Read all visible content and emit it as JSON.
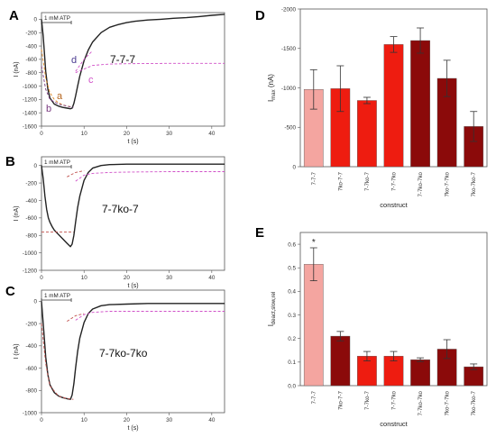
{
  "chart_data": [
    {
      "panel": "A",
      "type": "line",
      "xlabel": "t (s)",
      "ylabel": "I (nA)",
      "xlim": [
        0,
        43
      ],
      "ylim": [
        -1600,
        100
      ],
      "xticks": [
        0,
        10,
        20,
        30,
        40
      ],
      "yticks": [
        0,
        -200,
        -400,
        -600,
        -800,
        -1000,
        -1200,
        -1400,
        -1600
      ],
      "stimulus_label": "1 mM ATP",
      "stimulus_range": [
        0,
        7
      ],
      "annotation": "7-7-7",
      "curve_labels": [
        "a",
        "b",
        "c",
        "d"
      ],
      "series": [
        {
          "color": "#222222",
          "x": [
            0,
            0.4,
            1,
            1.5,
            2,
            3,
            4,
            5,
            6,
            6.8,
            7.2,
            7.6,
            8,
            8.5,
            9,
            10,
            11,
            12,
            14,
            16,
            18,
            20,
            22,
            25,
            28,
            31,
            34,
            37,
            40,
            43
          ],
          "y": [
            0,
            -250,
            -780,
            -1050,
            -1180,
            -1270,
            -1300,
            -1320,
            -1330,
            -1340,
            -1330,
            -1260,
            -1150,
            -1000,
            -850,
            -620,
            -460,
            -340,
            -200,
            -120,
            -80,
            -50,
            -30,
            -10,
            0,
            15,
            25,
            40,
            60,
            75
          ]
        },
        {
          "color": "#e08a28",
          "dashed": true,
          "x": [
            0,
            1,
            2,
            3,
            4,
            5,
            6,
            7
          ],
          "y": [
            -450,
            -880,
            -1100,
            -1200,
            -1250,
            -1280,
            -1300,
            -1310
          ]
        },
        {
          "color": "#7a3a80",
          "dashed": true,
          "x": [
            0,
            1,
            2,
            4,
            6,
            7.5
          ],
          "y": [
            -700,
            -1050,
            -1200,
            -1270,
            -1300,
            -1320
          ]
        },
        {
          "color": "#d050c8",
          "dashed": true,
          "x": [
            8,
            12,
            16,
            20,
            30,
            43
          ],
          "y": [
            -800,
            -690,
            -670,
            -665,
            -660,
            -660
          ]
        },
        {
          "color": "#d050c8",
          "dashed": true,
          "x": [
            8,
            10,
            12
          ],
          "y": [
            -780,
            -600,
            -470
          ]
        }
      ]
    },
    {
      "panel": "B",
      "type": "line",
      "xlabel": "t (s)",
      "ylabel": "I (nA)",
      "xlim": [
        0,
        43
      ],
      "ylim": [
        -1200,
        100
      ],
      "xticks": [
        0,
        10,
        20,
        30,
        40
      ],
      "yticks": [
        0,
        -200,
        -400,
        -600,
        -800,
        -1000,
        -1200
      ],
      "stimulus_label": "1 mM ATP",
      "stimulus_range": [
        0,
        7
      ],
      "annotation": "7-7ko-7",
      "series": [
        {
          "color": "#222222",
          "x": [
            0,
            0.4,
            0.8,
            1.2,
            1.6,
            2,
            2.5,
            3,
            4,
            5,
            6,
            6.8,
            7.2,
            7.6,
            8,
            8.5,
            9,
            10,
            11,
            12,
            14,
            16,
            20,
            25,
            30,
            35,
            40,
            43
          ],
          "y": [
            0,
            -150,
            -350,
            -500,
            -600,
            -650,
            -700,
            -740,
            -790,
            -840,
            -890,
            -930,
            -900,
            -800,
            -650,
            -480,
            -350,
            -170,
            -80,
            -30,
            0,
            10,
            15,
            15,
            15,
            15,
            15,
            15
          ]
        },
        {
          "color": "#c0504d",
          "dashed": true,
          "x": [
            0,
            2,
            4,
            6,
            7.5
          ],
          "y": [
            -760,
            -760,
            -760,
            -760,
            -760
          ]
        },
        {
          "color": "#d050c8",
          "dashed": true,
          "x": [
            8,
            10,
            12,
            16,
            20,
            30,
            43
          ],
          "y": [
            -180,
            -110,
            -90,
            -80,
            -75,
            -70,
            -70
          ]
        },
        {
          "color": "#c0504d",
          "dashed": true,
          "x": [
            6,
            8,
            10
          ],
          "y": [
            -130,
            -80,
            -60
          ]
        }
      ]
    },
    {
      "panel": "C",
      "type": "line",
      "xlabel": "t (s)",
      "ylabel": "I (nA)",
      "xlim": [
        0,
        43
      ],
      "ylim": [
        -1000,
        100
      ],
      "xticks": [
        0,
        10,
        20,
        30,
        40
      ],
      "yticks": [
        0,
        -200,
        -400,
        -600,
        -800,
        -1000
      ],
      "stimulus_label": "1 mM ATP",
      "stimulus_range": [
        0,
        7
      ],
      "annotation": "7-7ko-7ko",
      "series": [
        {
          "color": "#222222",
          "x": [
            0,
            0.5,
            1,
            1.5,
            2,
            3,
            4,
            5,
            6,
            6.8,
            7.2,
            7.6,
            8,
            8.5,
            9,
            10,
            11,
            12,
            14,
            16,
            20,
            25,
            30,
            35,
            40,
            43
          ],
          "y": [
            0,
            -250,
            -500,
            -660,
            -750,
            -820,
            -850,
            -865,
            -875,
            -880,
            -840,
            -740,
            -600,
            -450,
            -330,
            -190,
            -110,
            -70,
            -40,
            -30,
            -25,
            -20,
            -20,
            -20,
            -20,
            -20
          ]
        },
        {
          "color": "#c0504d",
          "dashed": true,
          "x": [
            0,
            1,
            2,
            4,
            6,
            7.5
          ],
          "y": [
            -200,
            -560,
            -760,
            -850,
            -875,
            -880
          ]
        },
        {
          "color": "#d050c8",
          "dashed": true,
          "x": [
            8,
            10,
            12,
            16,
            20,
            30,
            43
          ],
          "y": [
            -170,
            -120,
            -100,
            -90,
            -90,
            -90,
            -90
          ]
        },
        {
          "color": "#c0504d",
          "dashed": true,
          "x": [
            6,
            8,
            10
          ],
          "y": [
            -180,
            -130,
            -110
          ]
        }
      ]
    },
    {
      "panel": "D",
      "type": "bar",
      "xlabel": "construct",
      "ylabel": "I",
      "ylabel_sub": "max",
      "ylabel_unit": "(nA)",
      "ylim": [
        0,
        -2000
      ],
      "yticks": [
        0,
        -500,
        -1000,
        -1500,
        -2000
      ],
      "ytick_labels": [
        "0",
        "-500",
        "-1000",
        "-1500",
        "-2000"
      ],
      "categories": [
        "7-7-7",
        "7ko-7-7",
        "7-7ko-7",
        "7-7-7ko",
        "7-7ko-7ko",
        "7ko-7-7ko",
        "7ko-7ko-7"
      ],
      "colors": [
        "#f4a5a0",
        "#ee1c10",
        "#ee1c10",
        "#ee1c10",
        "#8b0a0a",
        "#8b0a0a",
        "#8b0a0a"
      ],
      "values": [
        -980,
        -990,
        -840,
        -1550,
        -1600,
        -1120,
        -510
      ],
      "errors": [
        250,
        290,
        40,
        100,
        160,
        230,
        190
      ]
    },
    {
      "panel": "E",
      "type": "bar",
      "xlabel": "construct",
      "ylabel": "I",
      "ylabel_sub": "deact,slow,rel",
      "ylim": [
        0,
        0.65
      ],
      "yticks": [
        0,
        0.1,
        0.2,
        0.3,
        0.4,
        0.5,
        0.6
      ],
      "ytick_labels": [
        "0.0",
        "0.1",
        "0.2",
        "0.3",
        "0.4",
        "0.5",
        "0.6"
      ],
      "categories": [
        "7-7-7",
        "7ko-7-7",
        "7-7ko-7",
        "7-7-7ko",
        "7-7ko-7ko",
        "7ko-7-7ko",
        "7ko-7ko-7"
      ],
      "colors": [
        "#f4a5a0",
        "#8b0a0a",
        "#ee1c10",
        "#ee1c10",
        "#8b0a0a",
        "#8b0a0a",
        "#8b0a0a"
      ],
      "values": [
        0.515,
        0.21,
        0.125,
        0.125,
        0.11,
        0.155,
        0.08
      ],
      "errors": [
        0.07,
        0.02,
        0.02,
        0.02,
        0.008,
        0.04,
        0.012
      ],
      "significance": "*"
    }
  ]
}
